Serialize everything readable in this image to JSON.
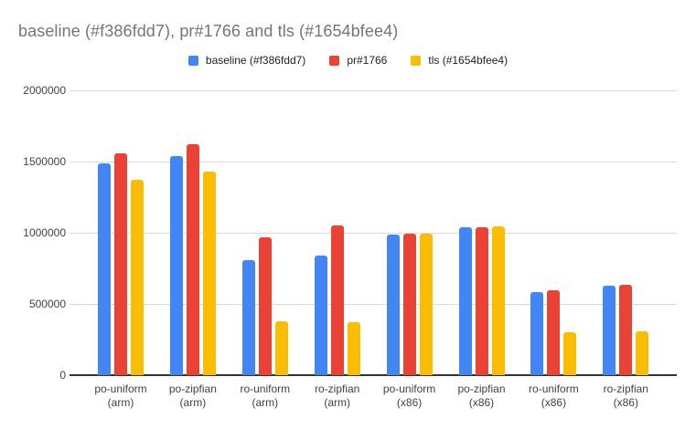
{
  "title": "baseline (#f386fdd7), pr#1766 and tls (#1654bfee4)",
  "legend": {
    "items": [
      {
        "label": "baseline (#f386fdd7)",
        "color": "#4285F4"
      },
      {
        "label": "pr#1766",
        "color": "#EA4335"
      },
      {
        "label": "tls (#1654bfee4)",
        "color": "#FBBC04"
      }
    ]
  },
  "colors": {
    "title_text": "#757575",
    "axis_text": "#424242",
    "gridline": "#dadada",
    "axis_line": "#333333",
    "background": "#ffffff"
  },
  "chart_data": {
    "type": "bar",
    "title": "baseline (#f386fdd7), pr#1766 and tls (#1654bfee4)",
    "xlabel": "",
    "ylabel": "",
    "ylim": [
      0,
      2000000
    ],
    "grid": true,
    "legend_position": "top",
    "yticks": [
      {
        "value": 0,
        "label": "0"
      },
      {
        "value": 500000,
        "label": "500000"
      },
      {
        "value": 1000000,
        "label": "1000000"
      },
      {
        "value": 1500000,
        "label": "1500000"
      },
      {
        "value": 2000000,
        "label": "2000000"
      }
    ],
    "categories": [
      {
        "line1": "po-uniform",
        "line2": "(arm)"
      },
      {
        "line1": "po-zipfian",
        "line2": "(arm)"
      },
      {
        "line1": "ro-uniform",
        "line2": "(arm)"
      },
      {
        "line1": "ro-zipfian",
        "line2": "(arm)"
      },
      {
        "line1": "po-uniform",
        "line2": "(x86)"
      },
      {
        "line1": "po-zipfian",
        "line2": "(x86)"
      },
      {
        "line1": "ro-uniform",
        "line2": "(x86)"
      },
      {
        "line1": "ro-zipfian",
        "line2": "(x86)"
      }
    ],
    "series": [
      {
        "name": "baseline (#f386fdd7)",
        "color": "#4285F4",
        "values": [
          1490000,
          1540000,
          805000,
          840000,
          990000,
          1040000,
          585000,
          627000
        ]
      },
      {
        "name": "pr#1766",
        "color": "#EA4335",
        "values": [
          1560000,
          1620000,
          970000,
          1050000,
          995000,
          1040000,
          595000,
          633000
        ]
      },
      {
        "name": "tls (#1654bfee4)",
        "color": "#FBBC04",
        "values": [
          1375000,
          1430000,
          380000,
          375000,
          995000,
          1045000,
          300000,
          305000
        ]
      }
    ]
  },
  "layout_numbers": {}
}
